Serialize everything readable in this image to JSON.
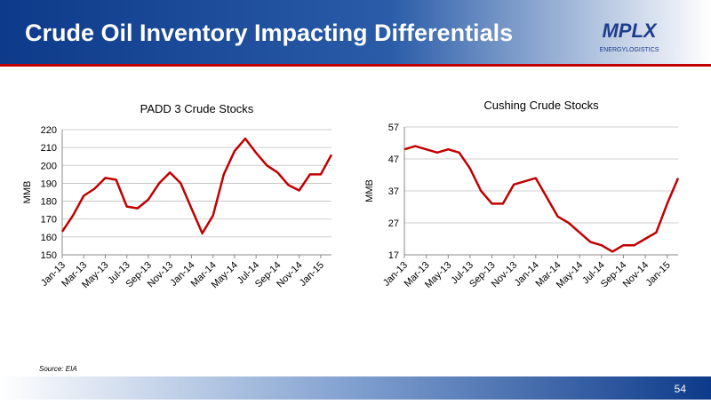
{
  "header": {
    "title": "Crude Oil Inventory Impacting Differentials"
  },
  "logo": {
    "name": "MPLX",
    "tagline": "ENERGYLOGISTICS"
  },
  "source": "Source: EIA",
  "page_number": "54",
  "chart_data": [
    {
      "type": "line",
      "title": "PADD 3 Crude Stocks",
      "y_label": "MMB",
      "color": "#c00000",
      "grid": true,
      "categories": [
        "Jan-13",
        null,
        "Mar-13",
        null,
        "May-13",
        null,
        "Jul-13",
        null,
        "Sep-13",
        null,
        "Nov-13",
        null,
        "Jan-14",
        null,
        "Mar-14",
        null,
        "May-14",
        null,
        "Jul-14",
        null,
        "Sep-14",
        null,
        "Nov-14",
        null,
        "Jan-15",
        null
      ],
      "values": [
        163,
        172,
        183,
        187,
        193,
        192,
        177,
        176,
        181,
        190,
        196,
        190,
        176,
        162,
        172,
        195,
        208,
        215,
        207,
        200,
        196,
        189,
        186,
        195,
        195,
        206
      ],
      "ylim": [
        150,
        220
      ],
      "yticks": [
        150,
        160,
        170,
        180,
        190,
        200,
        210,
        220
      ]
    },
    {
      "type": "line",
      "title": "Cushing Crude Stocks",
      "y_label": "MMB",
      "color": "#c00000",
      "grid": true,
      "categories": [
        "Jan-13",
        null,
        "Mar-13",
        null,
        "May-13",
        null,
        "Jul-13",
        null,
        "Sep-13",
        null,
        "Nov-13",
        null,
        "Jan-14",
        null,
        "Mar-14",
        null,
        "May-14",
        null,
        "Jul-14",
        null,
        "Sep-14",
        null,
        "Nov-14",
        null,
        "Jan-15",
        null
      ],
      "values": [
        50,
        51,
        50,
        49,
        50,
        49,
        44,
        37,
        33,
        33,
        39,
        40,
        41,
        35,
        29,
        27,
        24,
        21,
        20,
        18,
        20,
        20,
        22,
        24,
        33,
        41
      ],
      "ylim": [
        17,
        57
      ],
      "yticks": [
        17,
        27,
        37,
        47,
        57
      ]
    }
  ]
}
